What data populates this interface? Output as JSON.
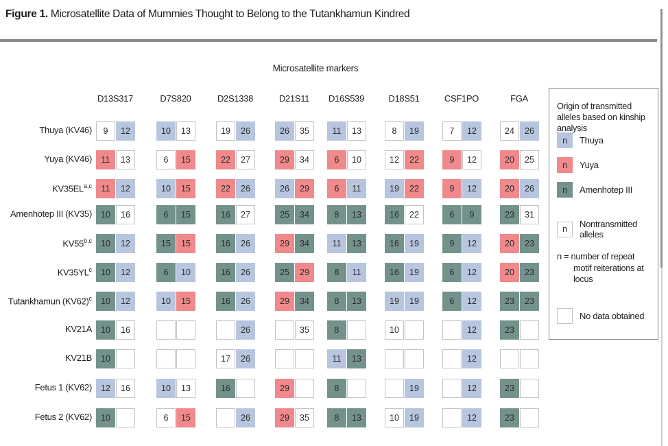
{
  "title": {
    "prefix": "Figure 1.",
    "text": " Microsatellite Data of Mummies Thought to Belong to the Tutankhamun Kindred"
  },
  "colors": {
    "thuya_blue": "#b7c5de",
    "yuya_red": "#f0898b",
    "amenhotep_teal": "#74928c",
    "no_data_white": "#ffffff"
  },
  "table": {
    "group_header": "Microsatellite markers",
    "markers": [
      "D13S317",
      "D7S820",
      "D2S1338",
      "D21S11",
      "D16S539",
      "D18S51",
      "CSF1PO",
      "FGA"
    ],
    "origin_codes": {
      "T": "Thuya",
      "Y": "Yuya",
      "A": "Amenhotep III",
      "N": "Nontransmitted",
      "E": "No data obtained"
    },
    "rows": [
      {
        "label": "Thuya (KV46)",
        "sup": "",
        "cells": [
          [
            "9|N",
            "12|T"
          ],
          [
            "10|T",
            "13|N"
          ],
          [
            "19|N",
            "26|T"
          ],
          [
            "26|T",
            "35|N"
          ],
          [
            "11|T",
            "13|N"
          ],
          [
            "8|N",
            "19|T"
          ],
          [
            "7|N",
            "12|T"
          ],
          [
            "24|N",
            "26|T"
          ]
        ]
      },
      {
        "label": "Yuya (KV46)",
        "sup": "",
        "cells": [
          [
            "11|Y",
            "13|N"
          ],
          [
            "6|N",
            "15|Y"
          ],
          [
            "22|Y",
            "27|N"
          ],
          [
            "29|Y",
            "34|N"
          ],
          [
            "6|Y",
            "10|N"
          ],
          [
            "12|N",
            "22|Y"
          ],
          [
            "9|Y",
            "12|N"
          ],
          [
            "20|Y",
            "25|N"
          ]
        ]
      },
      {
        "label": "KV35EL",
        "sup": "a,c",
        "cells": [
          [
            "11|Y",
            "12|T"
          ],
          [
            "10|T",
            "15|Y"
          ],
          [
            "22|Y",
            "26|T"
          ],
          [
            "26|T",
            "29|Y"
          ],
          [
            "6|Y",
            "11|T"
          ],
          [
            "19|T",
            "22|Y"
          ],
          [
            "9|Y",
            "12|T"
          ],
          [
            "20|Y",
            "26|T"
          ]
        ]
      },
      {
        "label": "Amenhotep III (KV35)",
        "sup": "",
        "cells": [
          [
            "10|A",
            "16|N"
          ],
          [
            "6|A",
            "15|A"
          ],
          [
            "16|A",
            "27|N"
          ],
          [
            "25|A",
            "34|A"
          ],
          [
            "8|A",
            "13|A"
          ],
          [
            "16|A",
            "22|N"
          ],
          [
            "6|A",
            "9|A"
          ],
          [
            "23|A",
            "31|N"
          ]
        ]
      },
      {
        "label": "KV55",
        "sup": "b,c",
        "cells": [
          [
            "10|A",
            "12|T"
          ],
          [
            "15|A",
            "15|Y"
          ],
          [
            "16|A",
            "26|T"
          ],
          [
            "29|Y",
            "34|A"
          ],
          [
            "11|T",
            "13|A"
          ],
          [
            "16|A",
            "19|T"
          ],
          [
            "9|A",
            "12|T"
          ],
          [
            "20|Y",
            "23|A"
          ]
        ]
      },
      {
        "label": "KV35YL",
        "sup": "c",
        "cells": [
          [
            "10|A",
            "12|T"
          ],
          [
            "6|A",
            "10|T"
          ],
          [
            "16|A",
            "26|T"
          ],
          [
            "25|A",
            "29|Y"
          ],
          [
            "8|A",
            "11|T"
          ],
          [
            "16|A",
            "19|T"
          ],
          [
            "6|A",
            "12|T"
          ],
          [
            "20|Y",
            "23|A"
          ]
        ]
      },
      {
        "label": "Tutankhamun (KV62)",
        "sup": "c",
        "cells": [
          [
            "10|A",
            "12|T"
          ],
          [
            "10|T",
            "15|Y"
          ],
          [
            "16|A",
            "26|T"
          ],
          [
            "29|Y",
            "34|A"
          ],
          [
            "8|A",
            "13|A"
          ],
          [
            "19|T",
            "19|T"
          ],
          [
            "6|A",
            "12|T"
          ],
          [
            "23|A",
            "23|A"
          ]
        ]
      },
      {
        "label": "KV21A",
        "sup": "",
        "cells": [
          [
            "10|A",
            "16|N"
          ],
          [
            "|E",
            "|E"
          ],
          [
            "|E",
            "26|T"
          ],
          [
            "|E",
            "35|N"
          ],
          [
            "8|A",
            "|E"
          ],
          [
            "10|N",
            "|E"
          ],
          [
            "|E",
            "12|T"
          ],
          [
            "23|A",
            "|E"
          ]
        ]
      },
      {
        "label": "KV21B",
        "sup": "",
        "cells": [
          [
            "10|A",
            "|E"
          ],
          [
            "|E",
            "|E"
          ],
          [
            "17|N",
            "26|T"
          ],
          [
            "|E",
            "|E"
          ],
          [
            "11|T",
            "13|A"
          ],
          [
            "|E",
            "|E"
          ],
          [
            "|E",
            "12|T"
          ],
          [
            "|E",
            "|E"
          ]
        ]
      },
      {
        "label": "Fetus 1 (KV62)",
        "sup": "",
        "cells": [
          [
            "12|T",
            "16|N"
          ],
          [
            "10|T",
            "13|N"
          ],
          [
            "16|A",
            "|E"
          ],
          [
            "29|Y",
            "|E"
          ],
          [
            "8|A",
            "|E"
          ],
          [
            "|E",
            "19|T"
          ],
          [
            "|E",
            "12|T"
          ],
          [
            "23|A",
            "|E"
          ]
        ]
      },
      {
        "label": "Fetus 2 (KV62)",
        "sup": "",
        "cells": [
          [
            "10|A",
            "|E"
          ],
          [
            "6|N",
            "15|Y"
          ],
          [
            "|E",
            "26|T"
          ],
          [
            "29|Y",
            "35|N"
          ],
          [
            "8|A",
            "13|A"
          ],
          [
            "10|N",
            "19|T"
          ],
          [
            "|E",
            "12|T"
          ],
          [
            "23|A",
            "|E"
          ]
        ]
      }
    ]
  },
  "legend": {
    "title": "Origin of transmitted alleles based on kinship analysis",
    "items": [
      {
        "symbol": "n",
        "origin": "T",
        "label": "Thuya"
      },
      {
        "symbol": "n",
        "origin": "Y",
        "label": "Yuya"
      },
      {
        "symbol": "n",
        "origin": "A",
        "label": "Amenhotep III"
      }
    ],
    "nontransmitted": {
      "symbol": "n",
      "label": "Nontransmitted alleles"
    },
    "note": "n = number of repeat motif reiterations at locus",
    "no_data": {
      "label": "No data obtained"
    }
  }
}
